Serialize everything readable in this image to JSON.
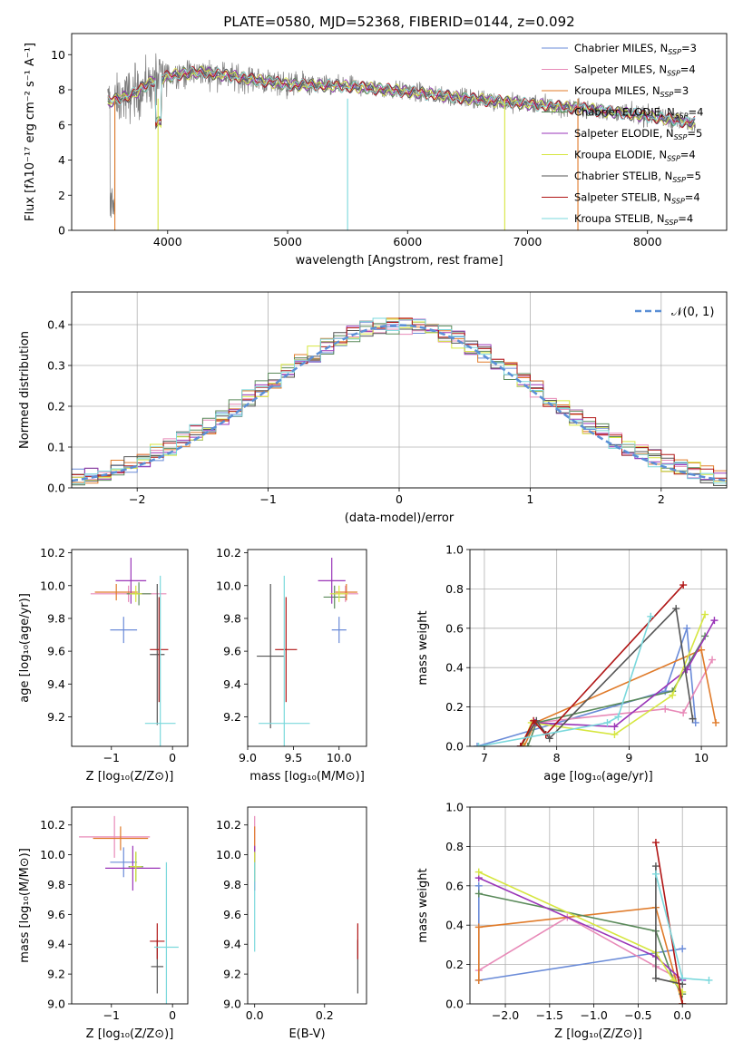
{
  "figure_title": "PLATE=0580, MJD=52368, FIBERID=0144, z=0.092",
  "models": [
    {
      "name": "Chabrier MILES",
      "nssp": 3,
      "color": "#6a8bd8"
    },
    {
      "name": "Salpeter MILES",
      "nssp": 4,
      "color": "#e88ab8"
    },
    {
      "name": "Kroupa MILES",
      "nssp": 3,
      "color": "#e07b2a"
    },
    {
      "name": "Chabrier ELODIE",
      "nssp": 4,
      "color": "#5a8a5a"
    },
    {
      "name": "Salpeter ELODIE",
      "nssp": 5,
      "color": "#9a35b8"
    },
    {
      "name": "Kroupa ELODIE",
      "nssp": 4,
      "color": "#d6e640"
    },
    {
      "name": "Chabrier STELIB",
      "nssp": 5,
      "color": "#555555"
    },
    {
      "name": "Salpeter STELIB",
      "nssp": 4,
      "color": "#b01515"
    },
    {
      "name": "Kroupa STELIB",
      "nssp": 4,
      "color": "#7ad8dc"
    }
  ],
  "chart_data": [
    {
      "id": "spectrum",
      "type": "line",
      "xlabel": "wavelength [Angstrom, rest frame]",
      "ylabel": "Flux [fλ10⁻¹⁷ erg cm⁻² s⁻¹ A⁻¹]",
      "xlim": [
        3200,
        8660
      ],
      "ylim": [
        0,
        11.2
      ],
      "xticks": [
        4000,
        5000,
        6000,
        7000,
        8000
      ],
      "yticks": [
        0,
        2,
        4,
        6,
        8,
        10
      ],
      "data_range": [
        3500,
        8400
      ],
      "continuum_knots": [
        [
          3500,
          7.3
        ],
        [
          3700,
          7.7
        ],
        [
          3900,
          8.6
        ],
        [
          4100,
          8.9
        ],
        [
          4300,
          9.0
        ],
        [
          4600,
          8.7
        ],
        [
          5000,
          8.3
        ],
        [
          5500,
          8.2
        ],
        [
          6000,
          7.9
        ],
        [
          6500,
          7.5
        ],
        [
          7000,
          7.2
        ],
        [
          7500,
          6.9
        ],
        [
          8000,
          6.5
        ],
        [
          8400,
          6.1
        ]
      ],
      "legend_loc": "upper right"
    },
    {
      "id": "residuals",
      "type": "histogram",
      "xlabel": "(data-model)/error",
      "ylabel": "Normed distribution",
      "xlim": [
        -2.5,
        2.5
      ],
      "ylim": [
        0,
        0.48
      ],
      "xticks": [
        -2,
        -1,
        0,
        1,
        2
      ],
      "yticks": [
        0,
        0.1,
        0.2,
        0.3,
        0.4
      ],
      "grid": true,
      "bin_width": 0.1,
      "reference_label": "𝒩(0, 1)",
      "reference_color": "#5b8fd6",
      "legend_loc": "upper right"
    },
    {
      "id": "age_vs_Z",
      "type": "errorbar",
      "xlabel": "Z [log₁₀(Z/Z⊙)]",
      "ylabel": "age  [log₁₀(age/yr)]",
      "xlim": [
        -1.65,
        0.25
      ],
      "ylim": [
        9.02,
        10.22
      ],
      "xticks": [
        -1,
        0
      ],
      "yticks": [
        9.2,
        9.4,
        9.6,
        9.8,
        10.0,
        10.2
      ],
      "points": [
        {
          "x": -0.8,
          "y": 9.73,
          "xerr": 0.22,
          "yerr": 0.08
        },
        {
          "x": -0.72,
          "y": 9.95,
          "xerr": 0.62,
          "yerr": 0.05
        },
        {
          "x": -0.92,
          "y": 9.96,
          "xerr": 0.35,
          "yerr": 0.05
        },
        {
          "x": -0.55,
          "y": 9.95,
          "xerr": 0.2,
          "yerr": 0.07
        },
        {
          "x": -0.68,
          "y": 10.03,
          "xerr": 0.25,
          "yerr": 0.14
        },
        {
          "x": -0.6,
          "y": 9.95,
          "xerr": 0.1,
          "yerr": 0.05
        },
        {
          "x": -0.25,
          "y": 9.58,
          "xerr": 0.12,
          "yerr": 0.43
        },
        {
          "x": -0.22,
          "y": 9.61,
          "xerr": 0.15,
          "yerr": 0.32
        },
        {
          "x": -0.2,
          "y": 9.16,
          "xerr": 0.25,
          "yerr": 0.9
        }
      ]
    },
    {
      "id": "age_vs_mass",
      "type": "errorbar",
      "xlabel": "mass [log₁₀(M/M⊙)]",
      "ylabel": "",
      "xlim": [
        9.0,
        10.3
      ],
      "ylim": [
        9.02,
        10.22
      ],
      "xticks": [
        9.0,
        9.5,
        10.0
      ],
      "yticks": [
        9.2,
        9.4,
        9.6,
        9.8,
        10.0,
        10.2
      ],
      "points": [
        {
          "x": 10.0,
          "y": 9.73,
          "xerr": 0.08,
          "yerr": 0.08
        },
        {
          "x": 10.07,
          "y": 9.95,
          "xerr": 0.14,
          "yerr": 0.05
        },
        {
          "x": 10.08,
          "y": 9.96,
          "xerr": 0.12,
          "yerr": 0.05
        },
        {
          "x": 9.95,
          "y": 9.93,
          "xerr": 0.12,
          "yerr": 0.07
        },
        {
          "x": 9.92,
          "y": 10.03,
          "xerr": 0.15,
          "yerr": 0.14
        },
        {
          "x": 10.0,
          "y": 9.95,
          "xerr": 0.1,
          "yerr": 0.05
        },
        {
          "x": 9.25,
          "y": 9.57,
          "xerr": 0.15,
          "yerr": 0.44
        },
        {
          "x": 9.42,
          "y": 9.61,
          "xerr": 0.12,
          "yerr": 0.32
        },
        {
          "x": 9.4,
          "y": 9.16,
          "xerr": 0.28,
          "yerr": 0.9
        }
      ]
    },
    {
      "id": "weight_vs_age",
      "type": "line",
      "xlabel": "age  [log₁₀(age/yr)]",
      "ylabel": "mass weight",
      "xlim": [
        6.8,
        10.35
      ],
      "ylim": [
        0,
        1.0
      ],
      "xticks": [
        7,
        8,
        9,
        10
      ],
      "yticks": [
        0.0,
        0.2,
        0.4,
        0.6,
        0.8,
        1.0
      ],
      "grid": true,
      "series": [
        {
          "model": 0,
          "points": [
            [
              6.9,
              0.0
            ],
            [
              9.5,
              0.28
            ],
            [
              9.8,
              0.6
            ],
            [
              9.92,
              0.12
            ]
          ]
        },
        {
          "model": 1,
          "points": [
            [
              7.7,
              0.12
            ],
            [
              9.5,
              0.19
            ],
            [
              9.75,
              0.17
            ],
            [
              10.15,
              0.44
            ]
          ]
        },
        {
          "model": 2,
          "points": [
            [
              7.55,
              0.0
            ],
            [
              7.7,
              0.12
            ],
            [
              10.0,
              0.49
            ],
            [
              10.2,
              0.12
            ]
          ]
        },
        {
          "model": 3,
          "points": [
            [
              7.6,
              0.0
            ],
            [
              7.72,
              0.12
            ],
            [
              9.6,
              0.28
            ],
            [
              10.05,
              0.56
            ]
          ]
        },
        {
          "model": 4,
          "points": [
            [
              7.5,
              0.0
            ],
            [
              7.7,
              0.12
            ],
            [
              8.8,
              0.1
            ],
            [
              9.8,
              0.39
            ],
            [
              10.18,
              0.64
            ]
          ]
        },
        {
          "model": 5,
          "points": [
            [
              7.52,
              0.0
            ],
            [
              7.65,
              0.12
            ],
            [
              8.8,
              0.06
            ],
            [
              9.6,
              0.26
            ],
            [
              10.05,
              0.67
            ]
          ]
        },
        {
          "model": 6,
          "points": [
            [
              7.5,
              0.0
            ],
            [
              7.72,
              0.13
            ],
            [
              7.9,
              0.04
            ],
            [
              9.65,
              0.7
            ],
            [
              9.88,
              0.14
            ]
          ]
        },
        {
          "model": 7,
          "points": [
            [
              7.5,
              0.0
            ],
            [
              7.68,
              0.13
            ],
            [
              7.85,
              0.06
            ],
            [
              9.75,
              0.82
            ]
          ]
        },
        {
          "model": 8,
          "points": [
            [
              6.92,
              0.0
            ],
            [
              8.7,
              0.12
            ],
            [
              8.85,
              0.15
            ],
            [
              9.3,
              0.66
            ]
          ]
        }
      ]
    },
    {
      "id": "mass_vs_Z",
      "type": "errorbar",
      "xlabel": "Z [log₁₀(Z/Z⊙)]",
      "ylabel": "mass [log₁₀(M/M⊙)]",
      "xlim": [
        -1.65,
        0.25
      ],
      "ylim": [
        9.0,
        10.32
      ],
      "xticks": [
        -1,
        0
      ],
      "yticks": [
        9.0,
        9.2,
        9.4,
        9.6,
        9.8,
        10.0,
        10.2
      ],
      "points": [
        {
          "x": -0.8,
          "y": 9.95,
          "xerr": 0.22,
          "yerr": 0.1
        },
        {
          "x": -0.95,
          "y": 10.12,
          "xerr": 0.58,
          "yerr": 0.14
        },
        {
          "x": -0.85,
          "y": 10.11,
          "xerr": 0.45,
          "yerr": 0.08
        },
        {
          "x": -0.6,
          "y": 9.92,
          "xerr": 0.12,
          "yerr": 0.1
        },
        {
          "x": -0.65,
          "y": 9.91,
          "xerr": 0.45,
          "yerr": 0.15
        },
        {
          "x": -0.6,
          "y": 9.92,
          "xerr": 0.1,
          "yerr": 0.1
        },
        {
          "x": -0.25,
          "y": 9.25,
          "xerr": 0.1,
          "yerr": 0.18
        },
        {
          "x": -0.25,
          "y": 9.42,
          "xerr": 0.12,
          "yerr": 0.12
        },
        {
          "x": -0.1,
          "y": 9.38,
          "xerr": 0.2,
          "yerr": 0.57
        }
      ]
    },
    {
      "id": "mass_vs_ebv",
      "type": "errorbar",
      "xlabel": "E(B-V)",
      "ylabel": "",
      "xlim": [
        -0.02,
        0.32
      ],
      "ylim": [
        9.0,
        10.32
      ],
      "xticks": [
        0.0,
        0.2
      ],
      "yticks": [
        9.0,
        9.2,
        9.4,
        9.6,
        9.8,
        10.0,
        10.2
      ],
      "points": [
        {
          "x": 0.0,
          "y": 9.95,
          "xerr": 0.0,
          "yerr": 0.1
        },
        {
          "x": 0.0,
          "y": 10.12,
          "xerr": 0.0,
          "yerr": 0.14
        },
        {
          "x": 0.0,
          "y": 10.11,
          "xerr": 0.0,
          "yerr": 0.08
        },
        {
          "x": 0.0,
          "y": 9.92,
          "xerr": 0.0,
          "yerr": 0.1
        },
        {
          "x": 0.0,
          "y": 9.91,
          "xerr": 0.0,
          "yerr": 0.15
        },
        {
          "x": 0.0,
          "y": 9.92,
          "xerr": 0.0,
          "yerr": 0.1
        },
        {
          "x": 0.295,
          "y": 9.25,
          "xerr": 0.0,
          "yerr": 0.18
        },
        {
          "x": 0.295,
          "y": 9.42,
          "xerr": 0.0,
          "yerr": 0.12
        },
        {
          "x": 0.0,
          "y": 9.65,
          "xerr": 0.0,
          "yerr": 0.3
        }
      ]
    },
    {
      "id": "weight_vs_Z",
      "type": "line",
      "xlabel": "Z [log₁₀(Z/Z⊙)]",
      "ylabel": "mass weight",
      "xlim": [
        -2.4,
        0.5
      ],
      "ylim": [
        0,
        1.0
      ],
      "xticks": [
        -2.0,
        -1.5,
        -1.0,
        -0.5,
        0.0
      ],
      "yticks": [
        0.0,
        0.2,
        0.4,
        0.6,
        0.8,
        1.0
      ],
      "grid": true,
      "series": [
        {
          "model": 0,
          "points": [
            [
              -2.3,
              0.6
            ],
            [
              -2.3,
              0.12
            ],
            [
              0.0,
              0.28
            ]
          ]
        },
        {
          "model": 1,
          "points": [
            [
              -2.3,
              0.17
            ],
            [
              -1.3,
              0.44
            ],
            [
              -0.3,
              0.19
            ],
            [
              0.0,
              0.12
            ]
          ]
        },
        {
          "model": 2,
          "points": [
            [
              -2.3,
              0.12
            ],
            [
              -2.3,
              0.39
            ],
            [
              -0.3,
              0.49
            ],
            [
              0.0,
              0.0
            ]
          ]
        },
        {
          "model": 3,
          "points": [
            [
              -2.3,
              0.56
            ],
            [
              -0.3,
              0.37
            ],
            [
              -0.1,
              0.12
            ],
            [
              0.0,
              0.05
            ]
          ]
        },
        {
          "model": 4,
          "points": [
            [
              -2.3,
              0.64
            ],
            [
              -0.3,
              0.24
            ],
            [
              0.0,
              0.12
            ]
          ]
        },
        {
          "model": 5,
          "points": [
            [
              -2.3,
              0.67
            ],
            [
              -0.3,
              0.26
            ],
            [
              -0.1,
              0.12
            ],
            [
              0.0,
              0.06
            ]
          ]
        },
        {
          "model": 6,
          "points": [
            [
              -0.3,
              0.7
            ],
            [
              -0.3,
              0.13
            ],
            [
              0.0,
              0.1
            ]
          ]
        },
        {
          "model": 7,
          "points": [
            [
              -0.3,
              0.82
            ],
            [
              0.0,
              0.0
            ]
          ]
        },
        {
          "model": 8,
          "points": [
            [
              -0.3,
              0.66
            ],
            [
              0.0,
              0.13
            ],
            [
              0.3,
              0.12
            ]
          ]
        }
      ]
    }
  ]
}
